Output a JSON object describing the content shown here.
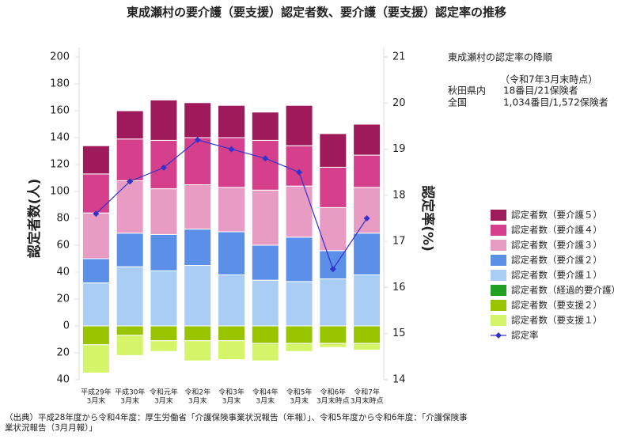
{
  "chart_data": {
    "type": "stacked_bar_line",
    "title": "東成瀬村の要介護（要支援）認定者数、要介護（要支援）認定率の推移",
    "y_label": "認定者数(人)",
    "y2_label": "認定率(%)",
    "categories": [
      [
        "平成29年",
        "3月末"
      ],
      [
        "平成30年",
        "3月末"
      ],
      [
        "令和元年",
        "3月末"
      ],
      [
        "令和2年",
        "3月末"
      ],
      [
        "令和3年",
        "3月末"
      ],
      [
        "令和4年",
        "3月末"
      ],
      [
        "令和5年",
        "3月末"
      ],
      [
        "令和6年",
        "3月末時点"
      ],
      [
        "令和7年",
        "3月末時点"
      ]
    ],
    "series": [
      {
        "name": "認定者数（要介護５）",
        "color": "#9e1a5a",
        "values": [
          21,
          21,
          30,
          26,
          24,
          21,
          30,
          25,
          23
        ]
      },
      {
        "name": "認定者数（要介護４）",
        "color": "#d63f8c",
        "values": [
          29,
          31,
          36,
          35,
          37,
          37,
          30,
          30,
          24
        ]
      },
      {
        "name": "認定者数（要介護３）",
        "color": "#e89cc4",
        "values": [
          34,
          39,
          34,
          33,
          33,
          41,
          38,
          32,
          34
        ]
      },
      {
        "name": "認定者数（要介護２）",
        "color": "#5b8fe8",
        "values": [
          18,
          25,
          27,
          27,
          32,
          26,
          33,
          21,
          31
        ]
      },
      {
        "name": "認定者数（要介護１）",
        "color": "#a9cdf5",
        "values": [
          32,
          44,
          41,
          45,
          38,
          34,
          33,
          35,
          38
        ]
      },
      {
        "name": "認定者数（経過的要介護）",
        "color": "#22a022",
        "values": [
          0,
          0,
          0,
          0,
          0,
          0,
          0,
          0,
          0
        ]
      },
      {
        "name": "認定者数（要支援２）",
        "color": "#99c400",
        "values": [
          -14,
          -7,
          -11,
          -11,
          -11,
          -13,
          -13,
          -13,
          -13
        ]
      },
      {
        "name": "認定者数（要支援１）",
        "color": "#d4f56a",
        "values": [
          -21,
          -15,
          -8,
          -15,
          -14,
          -13,
          -6,
          -3,
          -5
        ]
      },
      {
        "name": "認定率",
        "color": "#3333cc",
        "axis": "y2",
        "values": [
          17.6,
          18.3,
          18.6,
          19.2,
          19.0,
          18.8,
          18.5,
          16.4,
          17.5
        ]
      }
    ],
    "ylim": [
      -40,
      200
    ],
    "yticks": [
      {
        "value": -40,
        "label": "40"
      },
      {
        "value": -20,
        "label": "20"
      },
      0,
      20,
      40,
      60,
      80,
      100,
      120,
      140,
      160,
      180,
      200
    ],
    "y2lim": [
      14,
      21
    ],
    "y2ticks": [
      14,
      15,
      16,
      17,
      18,
      19,
      20,
      21
    ],
    "side_note": {
      "title": "東成瀬村の認定率の降順",
      "date": "（令和7年3月末時点）",
      "rows": [
        [
          "秋田県内",
          "18番目/21保険者"
        ],
        [
          "全国",
          "1,034番目/1,572保険者"
        ]
      ]
    },
    "source": "（出典）平成28年度から令和4年度：厚生労働省「介護保険事業状況報告（年報）」、令和5年度から令和6年度：「介護保険事業状況報告（3月月報）」"
  }
}
